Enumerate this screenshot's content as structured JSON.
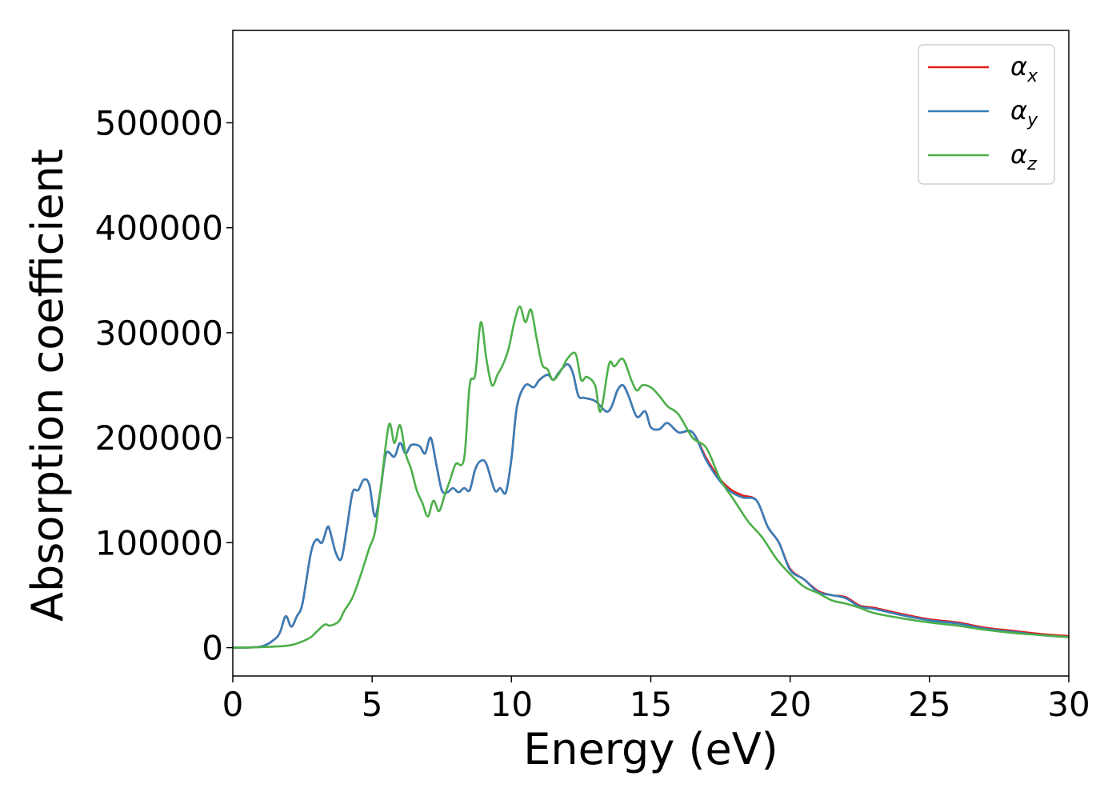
{
  "chart_data": {
    "type": "line",
    "title": "",
    "xlabel": "Energy (eV)",
    "ylabel": "Absorption coefficient",
    "xlim": [
      0,
      30
    ],
    "ylim": [
      -27000,
      588000
    ],
    "xticks": [
      0,
      5,
      10,
      15,
      20,
      25,
      30
    ],
    "yticks": [
      0,
      100000,
      200000,
      300000,
      400000,
      500000
    ],
    "xtick_labels": [
      "0",
      "5",
      "10",
      "15",
      "20",
      "25",
      "30"
    ],
    "ytick_labels": [
      "0",
      "100000",
      "200000",
      "300000",
      "400000",
      "500000"
    ],
    "grid": false,
    "legend_position": "top-right",
    "series": [
      {
        "name": "α_x",
        "label_base": "α",
        "label_sub": "x",
        "color": "#e41a1c",
        "x": [
          0,
          1.0,
          1.5,
          1.7,
          1.9,
          2.1,
          2.3,
          2.5,
          2.8,
          3.0,
          3.2,
          3.4,
          3.5,
          3.7,
          3.9,
          4.1,
          4.3,
          4.5,
          4.7,
          4.9,
          5.1,
          5.3,
          5.5,
          5.8,
          6.0,
          6.2,
          6.4,
          6.7,
          6.9,
          7.1,
          7.3,
          7.5,
          7.7,
          7.9,
          8.1,
          8.3,
          8.5,
          8.7,
          8.9,
          9.1,
          9.4,
          9.6,
          9.8,
          10.0,
          10.2,
          10.5,
          10.8,
          11.0,
          11.3,
          11.5,
          11.7,
          12.0,
          12.2,
          12.4,
          12.6,
          13.0,
          13.4,
          13.6,
          13.8,
          14.0,
          14.2,
          14.5,
          14.8,
          15.0,
          15.3,
          15.6,
          16.0,
          16.5,
          17.0,
          17.5,
          17.9,
          18.3,
          18.8,
          19.2,
          19.6,
          20.0,
          20.5,
          21.0,
          21.5,
          22.0,
          22.5,
          23.0,
          24.0,
          25.0,
          26.0,
          27.0,
          28.0,
          29.0,
          30.0
        ],
        "values": [
          0,
          1000,
          8000,
          15000,
          30000,
          20000,
          30000,
          42000,
          90000,
          103000,
          100000,
          115000,
          110000,
          90000,
          85000,
          115000,
          148000,
          150000,
          160000,
          155000,
          125000,
          150000,
          185000,
          182000,
          195000,
          185000,
          193000,
          192000,
          185000,
          200000,
          175000,
          150000,
          148000,
          152000,
          148000,
          152000,
          150000,
          170000,
          178000,
          175000,
          150000,
          152000,
          148000,
          180000,
          230000,
          250000,
          248000,
          255000,
          260000,
          255000,
          262000,
          270000,
          262000,
          240000,
          238000,
          235000,
          225000,
          230000,
          245000,
          250000,
          240000,
          220000,
          225000,
          210000,
          208000,
          214000,
          205000,
          205000,
          180000,
          160000,
          150000,
          145000,
          140000,
          115000,
          100000,
          75000,
          65000,
          54000,
          50000,
          48000,
          40000,
          38000,
          32000,
          27000,
          24000,
          19000,
          16000,
          13000,
          11000
        ]
      },
      {
        "name": "α_y",
        "label_base": "α",
        "label_sub": "y",
        "color": "#377eb8",
        "x": [
          0,
          1.0,
          1.5,
          1.7,
          1.9,
          2.1,
          2.3,
          2.5,
          2.8,
          3.0,
          3.2,
          3.4,
          3.5,
          3.7,
          3.9,
          4.1,
          4.3,
          4.5,
          4.7,
          4.9,
          5.1,
          5.3,
          5.5,
          5.8,
          6.0,
          6.2,
          6.4,
          6.7,
          6.9,
          7.1,
          7.3,
          7.5,
          7.7,
          7.9,
          8.1,
          8.3,
          8.5,
          8.7,
          8.9,
          9.1,
          9.4,
          9.6,
          9.8,
          10.0,
          10.2,
          10.5,
          10.8,
          11.0,
          11.3,
          11.5,
          11.7,
          12.0,
          12.2,
          12.4,
          12.6,
          13.0,
          13.4,
          13.6,
          13.8,
          14.0,
          14.2,
          14.5,
          14.8,
          15.0,
          15.3,
          15.6,
          16.0,
          16.5,
          17.0,
          17.5,
          17.9,
          18.3,
          18.8,
          19.2,
          19.6,
          20.0,
          20.5,
          21.0,
          21.5,
          22.0,
          22.5,
          23.0,
          24.0,
          25.0,
          26.0,
          27.0,
          28.0,
          29.0,
          30.0
        ],
        "values": [
          0,
          1000,
          8000,
          15000,
          30000,
          20000,
          30000,
          42000,
          90000,
          103000,
          100000,
          115000,
          110000,
          90000,
          85000,
          115000,
          148000,
          150000,
          160000,
          155000,
          125000,
          150000,
          185000,
          182000,
          195000,
          185000,
          193000,
          192000,
          185000,
          200000,
          175000,
          150000,
          148000,
          152000,
          148000,
          152000,
          150000,
          170000,
          178000,
          175000,
          150000,
          152000,
          148000,
          180000,
          230000,
          250000,
          248000,
          255000,
          260000,
          255000,
          262000,
          270000,
          262000,
          240000,
          238000,
          235000,
          225000,
          230000,
          245000,
          250000,
          240000,
          220000,
          225000,
          210000,
          208000,
          214000,
          205000,
          205000,
          178000,
          158000,
          148000,
          143000,
          140000,
          115000,
          100000,
          74000,
          65000,
          53000,
          50000,
          47000,
          39000,
          37000,
          31000,
          26000,
          23000,
          18000,
          15000,
          12000,
          10000
        ]
      },
      {
        "name": "α_z",
        "label_base": "α",
        "label_sub": "z",
        "color": "#4daf4a",
        "x": [
          0,
          1.0,
          2.0,
          2.5,
          2.8,
          3.0,
          3.3,
          3.5,
          3.8,
          4.0,
          4.3,
          4.6,
          4.9,
          5.1,
          5.3,
          5.6,
          5.8,
          6.0,
          6.2,
          6.4,
          6.6,
          6.8,
          7.0,
          7.2,
          7.4,
          7.6,
          7.8,
          8.0,
          8.3,
          8.5,
          8.7,
          8.9,
          9.1,
          9.3,
          9.5,
          9.7,
          9.9,
          10.1,
          10.3,
          10.5,
          10.7,
          10.9,
          11.1,
          11.3,
          11.5,
          11.8,
          12.0,
          12.3,
          12.5,
          12.7,
          13.0,
          13.2,
          13.5,
          13.7,
          14.0,
          14.3,
          14.5,
          14.7,
          15.0,
          15.3,
          15.6,
          16.0,
          16.5,
          17.0,
          17.5,
          18.0,
          18.5,
          19.0,
          19.5,
          20.0,
          20.5,
          21.0,
          21.5,
          22.0,
          22.5,
          23.0,
          24.0,
          25.0,
          26.0,
          27.0,
          28.0,
          29.0,
          30.0
        ],
        "values": [
          0,
          500,
          2000,
          6000,
          10000,
          15000,
          22000,
          21000,
          25000,
          35000,
          48000,
          70000,
          95000,
          110000,
          150000,
          212000,
          195000,
          212000,
          185000,
          170000,
          150000,
          138000,
          125000,
          140000,
          130000,
          145000,
          160000,
          175000,
          180000,
          250000,
          260000,
          310000,
          275000,
          250000,
          260000,
          270000,
          285000,
          310000,
          325000,
          310000,
          322000,
          295000,
          270000,
          265000,
          255000,
          265000,
          275000,
          280000,
          255000,
          258000,
          250000,
          225000,
          270000,
          268000,
          275000,
          255000,
          245000,
          250000,
          248000,
          240000,
          230000,
          222000,
          200000,
          190000,
          160000,
          140000,
          120000,
          105000,
          85000,
          70000,
          58000,
          52000,
          45000,
          42000,
          38000,
          33000,
          28000,
          24000,
          21000,
          17000,
          14000,
          12000,
          10000
        ]
      }
    ]
  }
}
